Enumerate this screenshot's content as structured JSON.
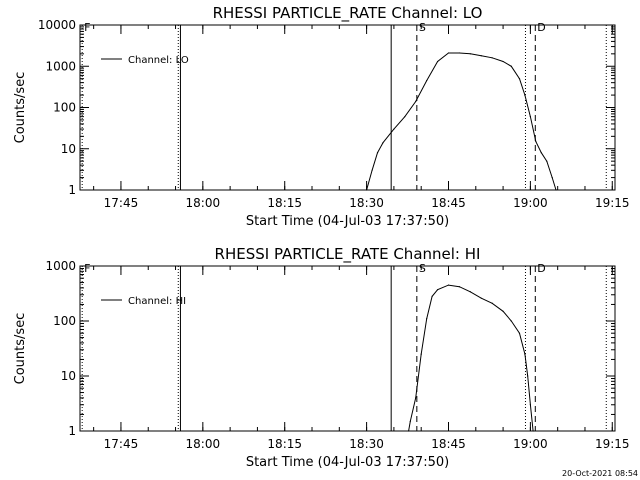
{
  "footer": {
    "timestamp": "20-Oct-2021 08:54"
  },
  "chart_data": [
    {
      "type": "line",
      "title": "RHESSI PARTICLE_RATE Channel: LO",
      "xlabel": "Start Time (04-Jul-03 17:37:50)",
      "ylabel": "Counts/sec",
      "yscale": "log",
      "ylim": [
        1,
        10000
      ],
      "xlim_minutes_after_1737": [
        0.5,
        98.5
      ],
      "xticks": [
        "17:45",
        "18:00",
        "18:15",
        "18:30",
        "18:45",
        "19:00",
        "19:15"
      ],
      "yticks": [
        "1",
        "10",
        "100",
        "1000",
        "10000"
      ],
      "legend": {
        "label": "Channel: LO",
        "position": "top-left"
      },
      "grid": false,
      "series": [
        {
          "name": "Channel: LO",
          "x": [
            "18:30.0",
            "18:31.0",
            "18:32.0",
            "18:33.0",
            "18:35.0",
            "18:37.0",
            "18:39.0",
            "18:41.0",
            "18:43.0",
            "18:45.0",
            "18:47.0",
            "18:49.0",
            "18:51.0",
            "18:53.0",
            "18:55.0",
            "18:56.5",
            "18:58.0",
            "18:59.0",
            "19:00.0",
            "19:01.0",
            "19:02.0",
            "19:03.0",
            "19:04.0",
            "19:04.7"
          ],
          "y": [
            1,
            3,
            8,
            14,
            30,
            60,
            140,
            450,
            1300,
            2100,
            2100,
            2000,
            1800,
            1600,
            1300,
            1000,
            500,
            200,
            60,
            15,
            8,
            5,
            2,
            1
          ]
        }
      ],
      "markers": [
        {
          "label": "F",
          "time": "17:37.9",
          "style": "dotted"
        },
        {
          "label": "",
          "time": "17:55.5",
          "style": "dotted"
        },
        {
          "label": "",
          "time": "17:55.9",
          "style": "solid"
        },
        {
          "label": "",
          "time": "18:34.5",
          "style": "solid"
        },
        {
          "label": "S",
          "time": "18:39.2",
          "style": "dashed"
        },
        {
          "label": "",
          "time": "18:59.1",
          "style": "dotted"
        },
        {
          "label": "D",
          "time": "19:00.9",
          "style": "dashed"
        },
        {
          "label": "",
          "time": "19:13.9",
          "style": "dotted"
        }
      ]
    },
    {
      "type": "line",
      "title": "RHESSI PARTICLE_RATE Channel: HI",
      "xlabel": "Start Time (04-Jul-03 17:37:50)",
      "ylabel": "Counts/sec",
      "yscale": "log",
      "ylim": [
        1,
        1000
      ],
      "xlim_minutes_after_1737": [
        0.5,
        98.5
      ],
      "xticks": [
        "17:45",
        "18:00",
        "18:15",
        "18:30",
        "18:45",
        "19:00",
        "19:15"
      ],
      "yticks": [
        "1",
        "10",
        "100",
        "1000"
      ],
      "legend": {
        "label": "Channel: HI",
        "position": "top-left"
      },
      "grid": false,
      "series": [
        {
          "name": "Channel: HI",
          "x": [
            "18:37.7",
            "18:38.0",
            "18:39.0",
            "18:40.0",
            "18:41.0",
            "18:42.0",
            "18:43.0",
            "18:45.0",
            "18:47.0",
            "18:49.0",
            "18:51.0",
            "18:53.0",
            "18:55.0",
            "18:56.5",
            "18:58.0",
            "18:59.0",
            "18:59.5",
            "19:00.0",
            "19:00.5"
          ],
          "y": [
            1,
            1.5,
            4,
            25,
            110,
            280,
            370,
            450,
            420,
            340,
            260,
            210,
            150,
            100,
            60,
            25,
            10,
            3,
            1
          ]
        }
      ],
      "markers": [
        {
          "label": "F",
          "time": "17:37.9",
          "style": "dotted"
        },
        {
          "label": "",
          "time": "17:55.5",
          "style": "dotted"
        },
        {
          "label": "",
          "time": "17:55.9",
          "style": "solid"
        },
        {
          "label": "",
          "time": "18:34.5",
          "style": "solid"
        },
        {
          "label": "S",
          "time": "18:39.2",
          "style": "dashed"
        },
        {
          "label": "",
          "time": "18:59.1",
          "style": "dotted"
        },
        {
          "label": "D",
          "time": "19:00.9",
          "style": "dashed"
        },
        {
          "label": "",
          "time": "19:13.9",
          "style": "dotted"
        }
      ]
    }
  ]
}
